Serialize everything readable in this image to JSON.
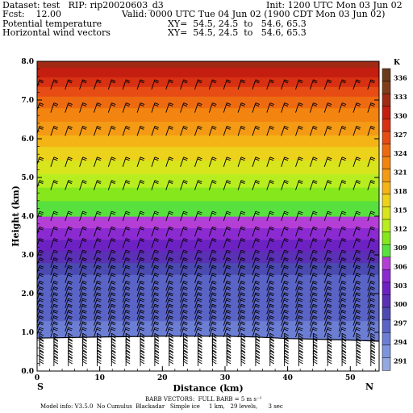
{
  "header": {
    "dataset": "Dataset: test   RIP: rip20020603_d3",
    "init": "Init: 1200 UTC Mon 03 Jun 02",
    "fcst": "Fcst:    12.00",
    "valid": "Valid: 0000 UTC Tue 04 Jun 02 (1900 CDT Mon 03 Jun 02)",
    "field1": "Potential temperature",
    "xy1": "XY=  54.5, 24.5  to   54.6, 65.3",
    "field2": "Horizontal wind vectors",
    "xy2": "XY=  54.5, 24.5  to   54.6, 65.3"
  },
  "footer": {
    "barb": "BARB VECTORS:  FULL BARB = 5 m s⁻¹",
    "model": "Model info: V3.5.0  No Cumulus  Blackadar   Simple ice     1 km,   29 levels,      3 sec"
  },
  "chart_data": {
    "type": "heatmap",
    "title": "",
    "xlabel": "Distance (km)",
    "ylabel": "Height (km)",
    "xlim": [
      0,
      54.6
    ],
    "ylim": [
      0,
      8
    ],
    "xticks": [
      "0",
      "10",
      "20",
      "30",
      "40",
      "50"
    ],
    "yticks": [
      "0.0",
      "1.0",
      "2.0",
      "3.0",
      "4.0",
      "5.0",
      "6.0",
      "7.0",
      "8.0"
    ],
    "x_end_labels": {
      "left": "S",
      "right": "N"
    },
    "terrain_height_km": [
      [
        0,
        0.85
      ],
      [
        10,
        0.88
      ],
      [
        20,
        0.9
      ],
      [
        30,
        0.9
      ],
      [
        35,
        0.88
      ],
      [
        40,
        0.84
      ],
      [
        45,
        0.82
      ],
      [
        50,
        0.8
      ],
      [
        54.6,
        0.77
      ]
    ],
    "theta_profile": [
      {
        "height_km": 0.9,
        "theta_K": 305.5
      },
      {
        "height_km": 2.5,
        "theta_K": 307.5
      },
      {
        "height_km": 3.0,
        "theta_K": 310
      },
      {
        "height_km": 4.0,
        "theta_K": 315
      },
      {
        "height_km": 5.0,
        "theta_K": 319
      },
      {
        "height_km": 6.0,
        "theta_K": 323.5
      },
      {
        "height_km": 7.0,
        "theta_K": 328
      },
      {
        "height_km": 8.0,
        "theta_K": 334
      }
    ],
    "colorbar": {
      "unit": "K",
      "labels": [
        "336",
        "333",
        "330",
        "327",
        "324",
        "321",
        "318",
        "315",
        "312",
        "309",
        "306",
        "303",
        "300",
        "297",
        "294",
        "291"
      ],
      "colors": [
        "#6b3a1c",
        "#7f3d1c",
        "#a02a14",
        "#c41e10",
        "#d83012",
        "#e64c14",
        "#ee6a10",
        "#f38410",
        "#f49a14",
        "#f4b416",
        "#ecd21a",
        "#d8e41c",
        "#b8ee20",
        "#86e81c",
        "#58e03e",
        "#b43fd6",
        "#8c2ad2",
        "#6c22c2",
        "#5a30b4",
        "#4a4ab0",
        "#5a64c6",
        "#6c7ed4",
        "#7e94dc",
        "#94a8e0"
      ]
    },
    "wind_barb_levels_km": [
      0.25,
      0.4,
      0.55,
      0.7,
      0.85,
      1.0,
      1.15,
      1.3,
      1.45,
      1.6,
      1.75,
      1.9,
      2.05,
      2.2,
      2.4,
      2.6,
      2.8,
      3.0,
      3.3,
      3.6,
      4.0,
      4.8,
      5.4,
      6.2,
      6.8,
      7.4
    ],
    "wind_barb_x_km": [
      0,
      2.3,
      4.6,
      6.9,
      9.2,
      11.5,
      13.8,
      16.1,
      18.4,
      20.7,
      23.0,
      25.3,
      27.6,
      29.9,
      32.2,
      34.5,
      36.8,
      39.1,
      41.4,
      43.7,
      46.0,
      48.3,
      50.6,
      52.9
    ]
  }
}
